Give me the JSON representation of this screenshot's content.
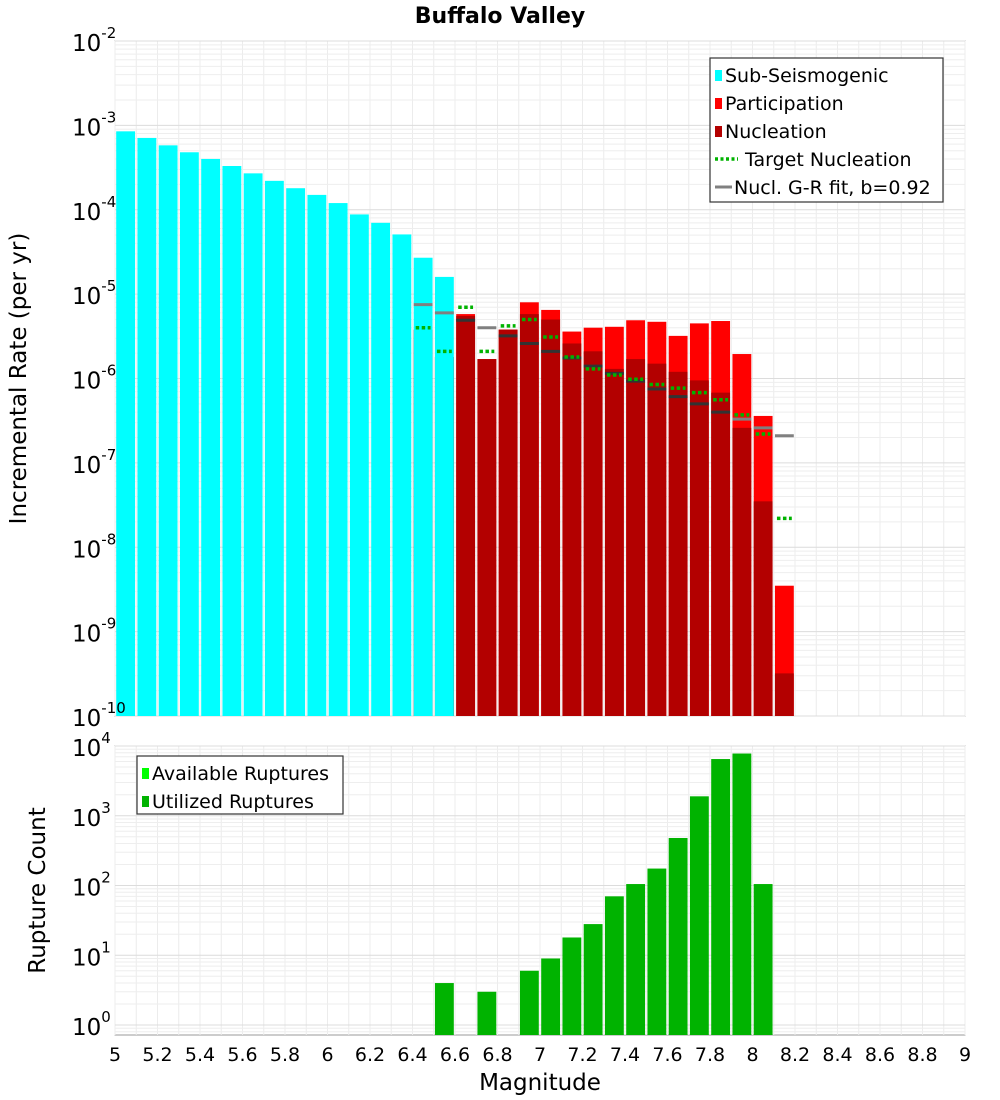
{
  "chart_data": [
    {
      "type": "bar",
      "title": "Buffalo Valley",
      "ylabel": "Incremental Rate (per yr)",
      "yscale": "log",
      "ylim_exp": [
        -10,
        -2
      ],
      "xlim": [
        5,
        9
      ],
      "bin_width": 0.1,
      "y_ticks": [
        {
          "base": "10",
          "exp": "-2"
        },
        {
          "base": "10",
          "exp": "-3"
        },
        {
          "base": "10",
          "exp": "-4"
        },
        {
          "base": "10",
          "exp": "-5"
        },
        {
          "base": "10",
          "exp": "-6"
        },
        {
          "base": "10",
          "exp": "-7"
        },
        {
          "base": "10",
          "exp": "-8"
        },
        {
          "base": "10",
          "exp": "-9"
        },
        {
          "base": "10",
          "exp": "-10"
        }
      ],
      "legend": [
        {
          "label": "Sub-Seismogenic",
          "color": "#00ffff",
          "marker": "square"
        },
        {
          "label": "Participation",
          "color": "#ff0000",
          "marker": "square"
        },
        {
          "label": "Nucleation",
          "color": "#b30000",
          "marker": "square"
        },
        {
          "label": "Target Nucleation",
          "color": "#00b300",
          "marker": "dotted"
        },
        {
          "label": "Nucl. G-R fit, b=0.92",
          "color": "#808080",
          "marker": "line"
        }
      ],
      "series": [
        {
          "name": "Sub-Seismogenic",
          "color": "#00ffff",
          "x": [
            5.05,
            5.15,
            5.25,
            5.35,
            5.45,
            5.55,
            5.65,
            5.75,
            5.85,
            5.95,
            6.05,
            6.15,
            6.25,
            6.35,
            6.45,
            6.55
          ],
          "values": [
            0.00085,
            0.00071,
            0.00058,
            0.00048,
            0.0004,
            0.00033,
            0.00027,
            0.00022,
            0.00018,
            0.00015,
            0.00012,
            8.8e-05,
            7e-05,
            5.1e-05,
            2.7e-05,
            1.6e-05
          ]
        },
        {
          "name": "Participation",
          "color": "#ff0000",
          "x": [
            6.45,
            6.55,
            6.65,
            6.75,
            6.85,
            6.95,
            7.05,
            7.15,
            7.25,
            7.35,
            7.45,
            7.55,
            7.65,
            7.75,
            7.85,
            7.95,
            8.05,
            8.15
          ],
          "values": [
            3.8e-06,
            1.8e-06,
            5.8e-06,
            1.7e-06,
            3.8e-06,
            8e-06,
            6.5e-06,
            3.6e-06,
            4e-06,
            4.1e-06,
            4.9e-06,
            4.7e-06,
            3.2e-06,
            4.5e-06,
            4.8e-06,
            1.95e-06,
            3.6e-07,
            3.5e-09
          ]
        },
        {
          "name": "Nucleation",
          "color": "#b30000",
          "x": [
            6.45,
            6.55,
            6.65,
            6.75,
            6.85,
            6.95,
            7.05,
            7.15,
            7.25,
            7.35,
            7.45,
            7.55,
            7.65,
            7.75,
            7.85,
            7.95,
            8.05,
            8.15
          ],
          "values": [
            3.8e-06,
            1.8e-06,
            5.5e-06,
            1.7e-06,
            3.8e-06,
            5.8e-06,
            5e-06,
            2.6e-06,
            2.1e-06,
            1.3e-06,
            1.7e-06,
            1.5e-06,
            1.2e-06,
            9.5e-07,
            6.8e-07,
            2.6e-07,
            3.5e-08,
            3.2e-10
          ]
        },
        {
          "name": "Target Nucleation",
          "color": "#00b300",
          "x": [
            6.45,
            6.55,
            6.65,
            6.75,
            6.85,
            6.95,
            7.05,
            7.15,
            7.25,
            7.35,
            7.45,
            7.55,
            7.65,
            7.75,
            7.85,
            7.95,
            8.05,
            8.15
          ],
          "values": [
            4e-06,
            2.1e-06,
            7e-06,
            2.1e-06,
            4.2e-06,
            5e-06,
            3.1e-06,
            1.8e-06,
            1.3e-06,
            1.1e-06,
            9.8e-07,
            8.5e-07,
            7.7e-07,
            6.8e-07,
            5.6e-07,
            3.7e-07,
            2.2e-07,
            2.2e-08
          ]
        },
        {
          "name": "Nucl. G-R fit, b=0.92",
          "color": "#808080",
          "x": [
            6.45,
            6.55,
            6.65,
            6.75,
            6.85,
            6.95,
            7.05,
            7.15,
            7.25,
            7.35,
            7.45,
            7.55,
            7.65,
            7.75,
            7.85,
            7.95,
            8.05,
            8.15
          ],
          "values": [
            7.5e-06,
            6e-06,
            4.9e-06,
            4e-06,
            3.2e-06,
            2.6e-06,
            2.1e-06,
            1.75e-06,
            1.4e-06,
            1.15e-06,
            9.3e-07,
            7.5e-07,
            6.1e-07,
            5e-07,
            4e-07,
            3.3e-07,
            2.6e-07,
            2.1e-07
          ]
        }
      ]
    },
    {
      "type": "bar",
      "ylabel": "Rupture Count",
      "xlabel": "Magnitude",
      "yscale": "log",
      "ylim": [
        0.72,
        10000
      ],
      "xlim": [
        5,
        9
      ],
      "bin_width": 0.1,
      "x_tick_labels": [
        "5",
        "5.2",
        "5.4",
        "5.6",
        "5.8",
        "6",
        "6.2",
        "6.4",
        "6.6",
        "6.8",
        "7",
        "7.2",
        "7.4",
        "7.6",
        "7.8",
        "8",
        "8.2",
        "8.4",
        "8.6",
        "8.8",
        "9"
      ],
      "y_ticks": [
        {
          "base": "10",
          "exp": "4"
        },
        {
          "base": "10",
          "exp": "3"
        },
        {
          "base": "10",
          "exp": "2"
        },
        {
          "base": "10",
          "exp": "1"
        },
        {
          "base": "10",
          "exp": "0"
        }
      ],
      "legend": [
        {
          "label": "Available Ruptures",
          "color": "#00ff00",
          "marker": "square"
        },
        {
          "label": "Utilized Ruptures",
          "color": "#00b300",
          "marker": "square"
        }
      ],
      "series": [
        {
          "name": "Utilized Ruptures",
          "color": "#00b300",
          "x": [
            6.55,
            6.75,
            6.95,
            7.05,
            7.15,
            7.25,
            7.35,
            7.45,
            7.55,
            7.65,
            7.75,
            7.85,
            7.95,
            8.05
          ],
          "values": [
            4,
            3,
            6,
            9,
            18,
            28,
            70,
            105,
            175,
            480,
            1900,
            6500,
            7800,
            105
          ]
        }
      ]
    }
  ]
}
